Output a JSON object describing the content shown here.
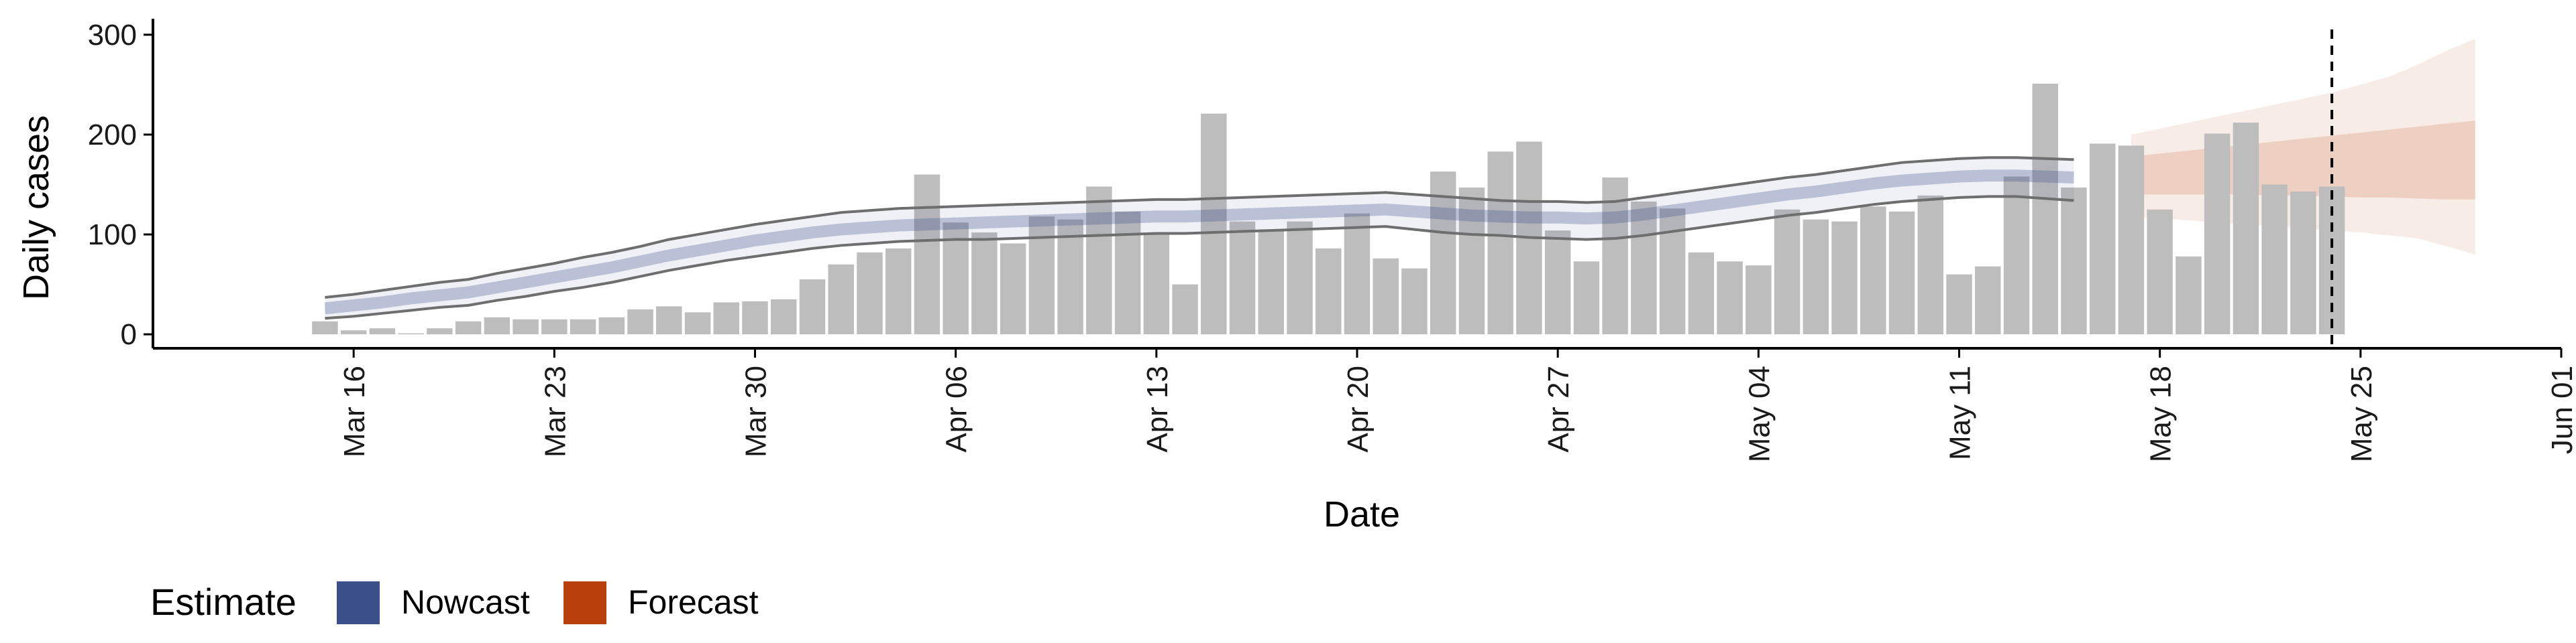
{
  "chart_data": {
    "type": "bar",
    "title": "",
    "xlabel": "Date",
    "ylabel": "Daily cases",
    "xlim": [
      "2020-03-09",
      "2020-06-01"
    ],
    "ylim": [
      -14,
      316
    ],
    "x_ticks": [
      "2020-03-16",
      "2020-03-23",
      "2020-03-30",
      "2020-04-06",
      "2020-04-13",
      "2020-04-20",
      "2020-04-27",
      "2020-05-04",
      "2020-05-11",
      "2020-05-18",
      "2020-05-25",
      "2020-06-01"
    ],
    "x_tick_labels": [
      "Mar 16",
      "Mar 23",
      "Mar 30",
      "Apr 06",
      "Apr 13",
      "Apr 20",
      "Apr 27",
      "May 04",
      "May 11",
      "May 18",
      "May 25",
      "Jun 01"
    ],
    "y_ticks": [
      0,
      100,
      200,
      300
    ],
    "y_tick_labels": [
      "0",
      "100",
      "200",
      "300"
    ],
    "grid": false,
    "legend_position": "bottom-left",
    "colors": {
      "bars": "#bdbdbd",
      "nowcast": "#3b4f8a",
      "forecast": "#b8400d",
      "bounds_line": "#6e6e6e",
      "axis": "#000000"
    },
    "bars": {
      "start_date": "2020-03-15",
      "values": [
        13,
        4,
        6,
        1,
        6,
        13,
        17,
        15,
        15,
        15,
        17,
        25,
        28,
        22,
        32,
        33,
        35,
        55,
        70,
        82,
        86,
        160,
        112,
        102,
        91,
        118,
        115,
        148,
        123,
        100,
        50,
        221,
        113,
        105,
        113,
        86,
        121,
        76,
        66,
        163,
        147,
        183,
        193,
        104,
        73,
        157,
        133,
        126,
        82,
        73,
        69,
        125,
        115,
        113,
        128,
        123,
        139,
        60,
        68,
        158,
        251,
        147,
        191,
        189,
        125,
        78,
        201,
        212,
        150,
        143,
        148
      ]
    },
    "series": [
      {
        "name": "Nowcast",
        "type": "band",
        "start_date": "2020-03-15",
        "median": [
          26,
          29,
          32,
          36,
          39,
          42,
          47,
          52,
          57,
          62,
          67,
          73,
          79,
          84,
          89,
          94,
          98,
          102,
          105,
          107,
          109,
          110,
          111,
          112,
          113,
          114,
          115,
          116,
          117,
          118,
          118,
          119,
          120,
          121,
          122,
          123,
          124,
          125,
          123,
          121,
          119,
          118,
          117,
          117,
          116,
          117,
          120,
          124,
          128,
          132,
          136,
          140,
          143,
          147,
          151,
          154,
          156,
          158,
          159,
          159,
          158,
          157
        ],
        "inner_lower": [
          20,
          23,
          26,
          30,
          33,
          36,
          41,
          46,
          51,
          56,
          61,
          67,
          73,
          78,
          83,
          88,
          92,
          96,
          99,
          101,
          103,
          104,
          105,
          106,
          107,
          108,
          109,
          110,
          111,
          112,
          112,
          113,
          114,
          115,
          116,
          117,
          118,
          119,
          117,
          115,
          113,
          112,
          111,
          111,
          110,
          111,
          114,
          118,
          122,
          126,
          130,
          134,
          137,
          141,
          145,
          148,
          150,
          152,
          153,
          153,
          152,
          151
        ],
        "inner_upper": [
          32,
          35,
          38,
          42,
          45,
          48,
          53,
          58,
          63,
          68,
          73,
          79,
          85,
          90,
          95,
          100,
          104,
          108,
          111,
          113,
          115,
          116,
          117,
          118,
          119,
          120,
          121,
          122,
          123,
          124,
          124,
          125,
          126,
          127,
          128,
          129,
          130,
          131,
          129,
          127,
          125,
          124,
          123,
          123,
          122,
          123,
          126,
          130,
          134,
          138,
          142,
          146,
          149,
          153,
          157,
          160,
          162,
          164,
          165,
          165,
          164,
          163
        ],
        "outer_lower": [
          16,
          18,
          21,
          24,
          27,
          29,
          34,
          38,
          43,
          47,
          52,
          58,
          64,
          69,
          74,
          78,
          82,
          86,
          89,
          91,
          93,
          94,
          95,
          95,
          96,
          97,
          98,
          99,
          100,
          101,
          101,
          102,
          103,
          104,
          105,
          106,
          107,
          108,
          105,
          102,
          100,
          99,
          97,
          96,
          95,
          96,
          99,
          103,
          107,
          111,
          115,
          119,
          122,
          126,
          130,
          133,
          135,
          137,
          138,
          138,
          136,
          134
        ],
        "outer_upper": [
          37,
          40,
          44,
          48,
          52,
          55,
          61,
          66,
          71,
          77,
          82,
          88,
          95,
          100,
          105,
          110,
          114,
          118,
          122,
          124,
          126,
          127,
          128,
          129,
          130,
          131,
          132,
          133,
          134,
          135,
          135,
          136,
          137,
          138,
          139,
          140,
          141,
          142,
          140,
          138,
          136,
          134,
          133,
          133,
          132,
          133,
          137,
          141,
          145,
          149,
          153,
          157,
          160,
          164,
          168,
          172,
          174,
          176,
          177,
          177,
          176,
          175
        ]
      },
      {
        "name": "Forecast",
        "type": "band",
        "start_date": "2020-05-17",
        "inner_lower": [
          140,
          140,
          140,
          140,
          140,
          139,
          139,
          138,
          137,
          137,
          136,
          135,
          135
        ],
        "inner_upper": [
          178,
          181,
          184,
          187,
          190,
          193,
          196,
          199,
          202,
          205,
          208,
          211,
          214
        ],
        "outer_lower": [
          118,
          116,
          114,
          112,
          110,
          108,
          106,
          104,
          102,
          99,
          96,
          88,
          80
        ],
        "outer_upper": [
          200,
          206,
          212,
          218,
          224,
          230,
          236,
          242,
          250,
          258,
          270,
          284,
          296
        ]
      }
    ],
    "annotations": [
      {
        "type": "vline",
        "x": "2020-05-24",
        "style": "dashed"
      }
    ],
    "legend": {
      "title": "Estimate",
      "items": [
        {
          "label": "Nowcast",
          "color": "#3b4f8a"
        },
        {
          "label": "Forecast",
          "color": "#b8400d"
        }
      ]
    }
  }
}
